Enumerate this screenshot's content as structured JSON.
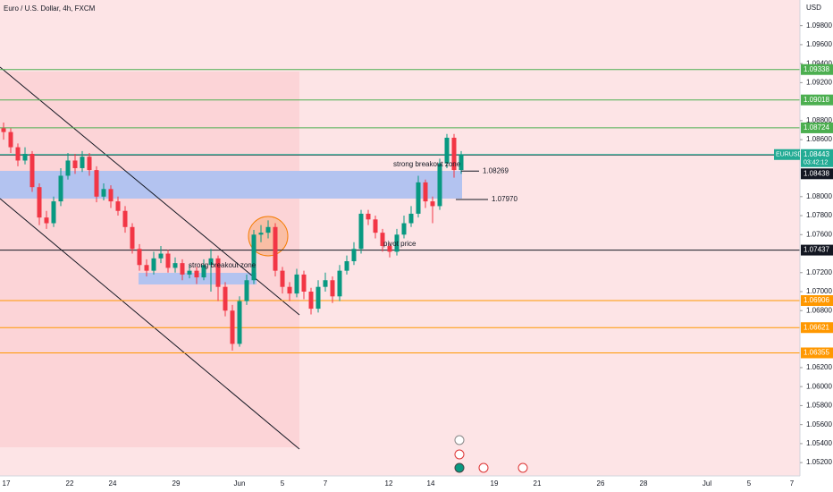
{
  "chart_data": {
    "type": "candlestick",
    "title": "Euro / U.S. Dollar, 4h, FXCM",
    "currency": "USD",
    "up_color": "#089981",
    "down_color": "#f23645",
    "ylim": [
      1.0506,
      1.1007
    ],
    "yticks": [
      {
        "value": 1.098,
        "label": "1.09800"
      },
      {
        "value": 1.096,
        "label": "1.09600"
      },
      {
        "value": 1.094,
        "label": "1.09400"
      },
      {
        "value": 1.092,
        "label": "1.09200"
      },
      {
        "value": 1.088,
        "label": "1.08800"
      },
      {
        "value": 1.086,
        "label": "1.08600"
      },
      {
        "value": 1.08,
        "label": "1.08000"
      },
      {
        "value": 1.078,
        "label": "1.07800"
      },
      {
        "value": 1.076,
        "label": "1.07600"
      },
      {
        "value": 1.072,
        "label": "1.07200"
      },
      {
        "value": 1.07,
        "label": "1.07000"
      },
      {
        "value": 1.068,
        "label": "1.06800"
      },
      {
        "value": 1.062,
        "label": "1.06200"
      },
      {
        "value": 1.06,
        "label": "1.06000"
      },
      {
        "value": 1.058,
        "label": "1.05800"
      },
      {
        "value": 1.056,
        "label": "1.05600"
      },
      {
        "value": 1.054,
        "label": "1.05400"
      },
      {
        "value": 1.052,
        "label": "1.05200"
      }
    ],
    "x_labels": [
      "17",
      "22",
      "24",
      "29",
      "Jun",
      "5",
      "7",
      "12",
      "14",
      "19",
      "21",
      "26",
      "28",
      "Jul",
      "5",
      "7"
    ],
    "open": [
      1.0872,
      1.0868,
      1.0852,
      1.0838,
      1.0845,
      1.081,
      1.0778,
      1.0772,
      1.0795,
      1.0822,
      1.0838,
      1.083,
      1.0842,
      1.0828,
      1.08,
      1.0808,
      1.0795,
      1.0785,
      1.0768,
      1.0745,
      1.0728,
      1.0722,
      1.0735,
      1.074,
      1.0725,
      1.073,
      1.0718,
      1.0722,
      1.0715,
      1.0728,
      1.0735,
      1.0705,
      1.068,
      1.0645,
      1.069,
      1.0712,
      1.076,
      1.0762,
      1.0768,
      1.0722,
      1.0705,
      1.0698,
      1.0718,
      1.07,
      1.0682,
      1.0705,
      1.0712,
      1.0695,
      1.0722,
      1.0732,
      1.0745,
      1.0782,
      1.0776,
      1.0762,
      1.0748,
      1.0742,
      1.076,
      1.0772,
      1.0782,
      1.0815,
      1.0795,
      1.079,
      1.0835,
      1.0862,
      1.0828
    ],
    "high": [
      1.0878,
      1.0872,
      1.0856,
      1.0852,
      1.0848,
      1.0814,
      1.0785,
      1.08,
      1.083,
      1.0846,
      1.0845,
      1.0848,
      1.0846,
      1.0832,
      1.0814,
      1.0812,
      1.08,
      1.079,
      1.0772,
      1.075,
      1.0734,
      1.0742,
      1.0748,
      1.0744,
      1.0736,
      1.0734,
      1.0728,
      1.0726,
      1.0734,
      1.0745,
      1.0738,
      1.071,
      1.0686,
      1.0695,
      1.0718,
      1.0765,
      1.077,
      1.0775,
      1.0772,
      1.0726,
      1.071,
      1.0724,
      1.0722,
      1.0704,
      1.0712,
      1.072,
      1.0716,
      1.0728,
      1.0738,
      1.0752,
      1.0786,
      1.0786,
      1.078,
      1.0766,
      1.0752,
      1.0766,
      1.078,
      1.079,
      1.0822,
      1.0818,
      1.08,
      1.084,
      1.0866,
      1.0866,
      1.0848
    ],
    "low": [
      1.086,
      1.0846,
      1.0832,
      1.0834,
      1.0805,
      1.077,
      1.0766,
      1.0768,
      1.079,
      1.0818,
      1.0824,
      1.0826,
      1.0822,
      1.0794,
      1.0796,
      1.0788,
      1.078,
      1.0762,
      1.074,
      1.0722,
      1.0716,
      1.0718,
      1.073,
      1.072,
      1.072,
      1.0712,
      1.0714,
      1.0708,
      1.0712,
      1.07,
      1.069,
      1.0674,
      1.0638,
      1.0642,
      1.0686,
      1.0708,
      1.0752,
      1.0756,
      1.0716,
      1.0698,
      1.069,
      1.0694,
      1.0692,
      1.0676,
      1.0678,
      1.07,
      1.0688,
      1.069,
      1.0718,
      1.0728,
      1.074,
      1.077,
      1.0756,
      1.0742,
      1.0736,
      1.0738,
      1.0756,
      1.0768,
      1.0778,
      1.0788,
      1.0772,
      1.0786,
      1.083,
      1.082,
      1.0824
    ],
    "close": [
      1.0868,
      1.0852,
      1.0838,
      1.0845,
      1.081,
      1.0778,
      1.0772,
      1.0795,
      1.0822,
      1.0838,
      1.083,
      1.0842,
      1.0828,
      1.08,
      1.0808,
      1.0795,
      1.0785,
      1.0768,
      1.0745,
      1.0728,
      1.0722,
      1.0735,
      1.074,
      1.0725,
      1.073,
      1.0718,
      1.0722,
      1.0715,
      1.0728,
      1.0735,
      1.0705,
      1.068,
      1.0645,
      1.069,
      1.0712,
      1.076,
      1.0762,
      1.0768,
      1.0722,
      1.0705,
      1.0698,
      1.0718,
      1.07,
      1.0682,
      1.0705,
      1.0712,
      1.0695,
      1.0722,
      1.0732,
      1.0745,
      1.0782,
      1.0776,
      1.0762,
      1.0748,
      1.0742,
      1.076,
      1.0772,
      1.0782,
      1.0815,
      1.0795,
      1.079,
      1.0835,
      1.0862,
      1.0828,
      1.0844
    ],
    "levels": [
      {
        "value": 1.09338,
        "color": "#4caf50"
      },
      {
        "value": 1.09018,
        "color": "#4caf50"
      },
      {
        "value": 1.08724,
        "color": "#4caf50"
      },
      {
        "value": 1.08438,
        "color": "#131722"
      },
      {
        "value": 1.07437,
        "color": "#131722"
      },
      {
        "value": 1.06906,
        "color": "#ff9800"
      },
      {
        "value": 1.06621,
        "color": "#ff9800"
      },
      {
        "value": 1.06355,
        "color": "#ff9800"
      }
    ],
    "last_price": {
      "symbol": "EURUSD",
      "value": 1.08443,
      "countdown": "03:42:12",
      "color": "#22ab94"
    },
    "markers": [
      {
        "value": 1.08269,
        "label": "1.08269"
      },
      {
        "value": 1.0797,
        "label": "1.07970"
      }
    ],
    "annotations": [
      "strong breakout zone",
      "strong breakout zone",
      "pivot price"
    ]
  }
}
